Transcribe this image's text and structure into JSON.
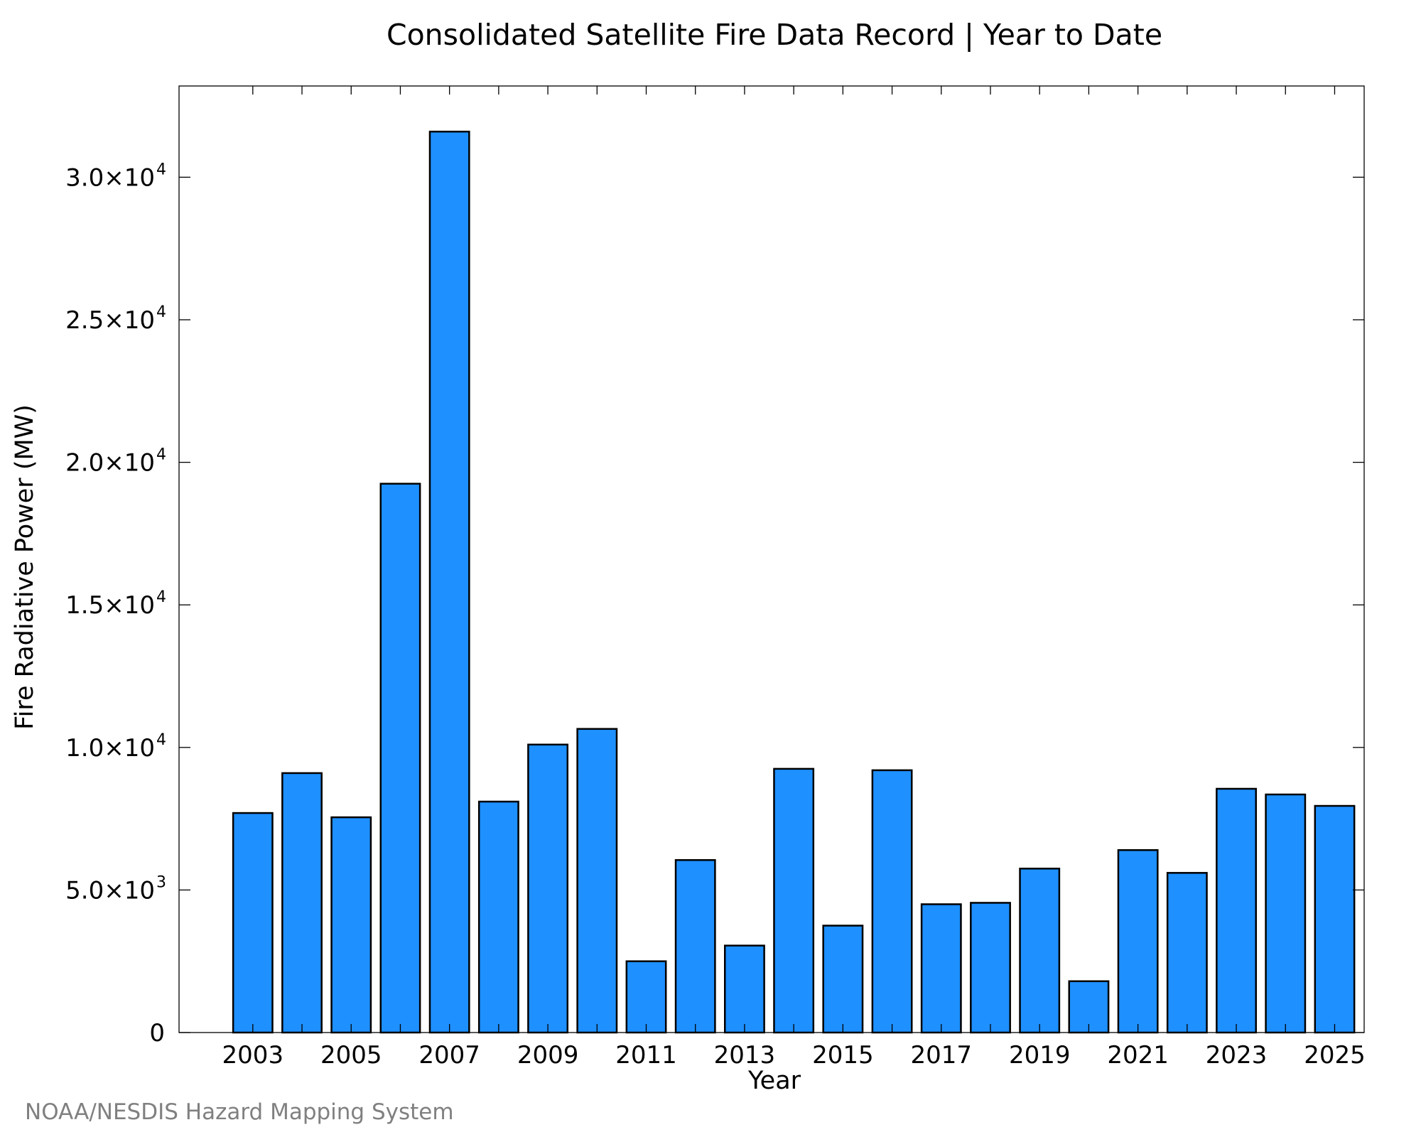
{
  "chart_data": {
    "type": "bar",
    "title": "Consolidated Satellite Fire Data Record | Year to Date",
    "xlabel": "Year",
    "ylabel": "Fire Radiative Power (MW)",
    "categories": [
      "2003",
      "2004",
      "2005",
      "2006",
      "2007",
      "2008",
      "2009",
      "2010",
      "2011",
      "2012",
      "2013",
      "2014",
      "2015",
      "2016",
      "2017",
      "2018",
      "2019",
      "2020",
      "2021",
      "2022",
      "2023",
      "2024",
      "2025"
    ],
    "values": [
      7700,
      9100,
      7550,
      19250,
      31600,
      8100,
      10100,
      10650,
      2500,
      6050,
      3050,
      9250,
      3750,
      9200,
      4500,
      4550,
      5750,
      1800,
      6400,
      5600,
      8550,
      8350,
      7950
    ],
    "x_tick_labels": [
      "2003",
      "2005",
      "2007",
      "2009",
      "2011",
      "2013",
      "2015",
      "2017",
      "2019",
      "2021",
      "2023",
      "2025"
    ],
    "y_ticks": [
      {
        "value": 0,
        "mantissa": "0",
        "exponent": ""
      },
      {
        "value": 5000,
        "mantissa": "5.0×10",
        "exponent": "3"
      },
      {
        "value": 10000,
        "mantissa": "1.0×10",
        "exponent": "4"
      },
      {
        "value": 15000,
        "mantissa": "1.5×10",
        "exponent": "4"
      },
      {
        "value": 20000,
        "mantissa": "2.0×10",
        "exponent": "4"
      },
      {
        "value": 25000,
        "mantissa": "2.5×10",
        "exponent": "4"
      },
      {
        "value": 30000,
        "mantissa": "3.0×10",
        "exponent": "4"
      }
    ],
    "ylim": [
      0,
      33200
    ],
    "xlim": [
      2001.5,
      2025.6
    ],
    "grid": false,
    "bar_color": "#1e90ff",
    "bar_edge_color": "#000000"
  },
  "credit": "NOAA/NESDIS Hazard Mapping System"
}
